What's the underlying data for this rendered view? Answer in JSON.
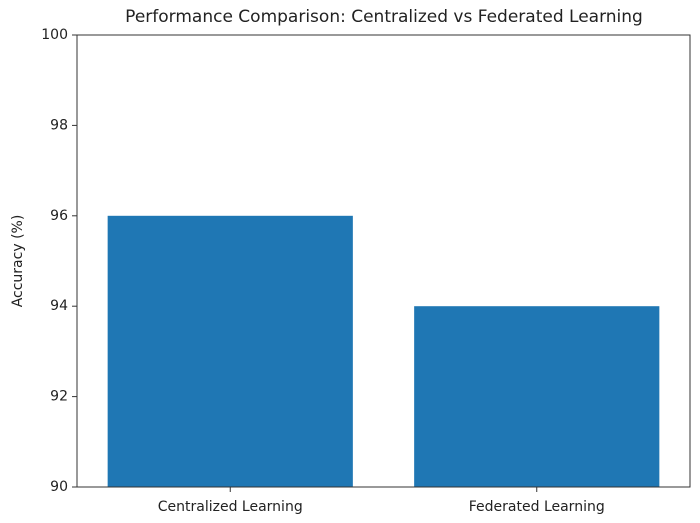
{
  "chart_data": {
    "type": "bar",
    "title": "Performance Comparison: Centralized vs Federated Learning",
    "y_label": "Accuracy (%)",
    "categories": [
      "Centralized Learning",
      "Federated Learning"
    ],
    "values": [
      96,
      94
    ],
    "color": "#1f77b4",
    "ylim": [
      90,
      100
    ],
    "yticks": [
      90,
      92,
      94,
      96,
      98,
      100
    ],
    "grid": false
  }
}
